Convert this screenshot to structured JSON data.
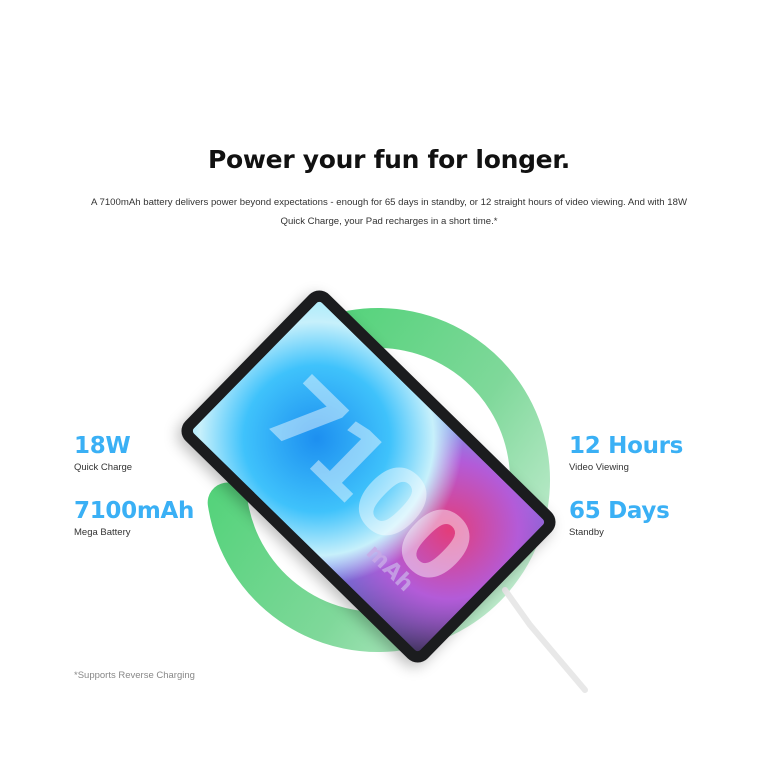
{
  "header": {
    "title": "Power your fun for longer.",
    "description": "A 7100mAh battery delivers power beyond expectations - enough for 65 days in standby, or 12 straight hours of video viewing. And with 18W Quick Charge, your Pad recharges in a short time.*"
  },
  "stats_left": [
    {
      "value": "18W",
      "label": "Quick Charge"
    },
    {
      "value": "7100mAh",
      "label": "Mega Battery"
    }
  ],
  "stats_right": [
    {
      "value": "12 Hours",
      "label": "Video Viewing"
    },
    {
      "value": "65 Days",
      "label": "Standby"
    }
  ],
  "product_image": {
    "screen_text": "7100",
    "screen_unit": "mAh"
  },
  "footnote": "*Supports Reverse Charging",
  "colors": {
    "accent": "#3ab0f5",
    "ring": "#3fd06b"
  }
}
